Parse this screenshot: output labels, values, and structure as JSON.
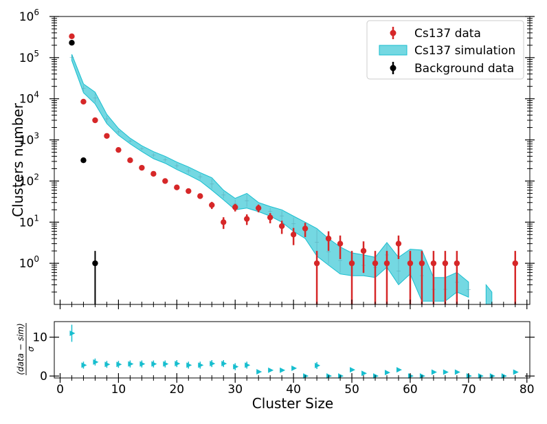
{
  "chart_data": [
    {
      "type": "scatter",
      "xlabel": "Cluster Size",
      "ylabel": "Clusters number",
      "yscale": "log",
      "xlim": [
        -1,
        80.5
      ],
      "ylim": [
        0.1,
        1000000
      ],
      "ytick_labels": [
        {
          "base": "10",
          "exp": "0"
        },
        {
          "base": "10",
          "exp": "1"
        },
        {
          "base": "10",
          "exp": "2"
        },
        {
          "base": "10",
          "exp": "3"
        },
        {
          "base": "10",
          "exp": "4"
        },
        {
          "base": "10",
          "exp": "5"
        },
        {
          "base": "10",
          "exp": "6"
        }
      ],
      "legend": {
        "placement": "top-right",
        "entries": [
          "Cs137 data",
          "Cs137 simulation",
          "Background data"
        ]
      },
      "series": [
        {
          "name": "Cs137 data",
          "color": "#d62728",
          "points": [
            {
              "x": 2,
              "y": 330000
            },
            {
              "x": 4,
              "y": 8500
            },
            {
              "x": 6,
              "y": 3000
            },
            {
              "x": 8,
              "y": 1250
            },
            {
              "x": 10,
              "y": 570
            },
            {
              "x": 12,
              "y": 320
            },
            {
              "x": 14,
              "y": 210
            },
            {
              "x": 16,
              "y": 150
            },
            {
              "x": 18,
              "y": 100
            },
            {
              "x": 20,
              "y": 70
            },
            {
              "x": 22,
              "y": 57
            },
            {
              "x": 24,
              "y": 43
            },
            {
              "x": 26,
              "y": 26
            },
            {
              "x": 28,
              "y": 10
            },
            {
              "x": 30,
              "y": 23
            },
            {
              "x": 32,
              "y": 12
            },
            {
              "x": 34,
              "y": 22
            },
            {
              "x": 36,
              "y": 13
            },
            {
              "x": 38,
              "y": 8
            },
            {
              "x": 40,
              "y": 5
            },
            {
              "x": 42,
              "y": 7
            },
            {
              "x": 44,
              "y": 1
            },
            {
              "x": 46,
              "y": 4
            },
            {
              "x": 48,
              "y": 3
            },
            {
              "x": 50,
              "y": 1
            },
            {
              "x": 52,
              "y": 2
            },
            {
              "x": 54,
              "y": 1
            },
            {
              "x": 56,
              "y": 1
            },
            {
              "x": 58,
              "y": 3
            },
            {
              "x": 60,
              "y": 1
            },
            {
              "x": 62,
              "y": 1
            },
            {
              "x": 64,
              "y": 1
            },
            {
              "x": 66,
              "y": 1
            },
            {
              "x": 68,
              "y": 1
            },
            {
              "x": 78,
              "y": 1
            }
          ]
        },
        {
          "name": "Cs137 simulation",
          "color": "#17becf",
          "band": [
            {
              "x": 2,
              "lo": 85000,
              "hi": 120000
            },
            {
              "x": 4,
              "lo": 14000,
              "hi": 23000
            },
            {
              "x": 6,
              "lo": 7500,
              "hi": 14500
            },
            {
              "x": 8,
              "lo": 2500,
              "hi": 4200
            },
            {
              "x": 10,
              "lo": 1300,
              "hi": 1900
            },
            {
              "x": 12,
              "lo": 800,
              "hi": 1100
            },
            {
              "x": 14,
              "lo": 520,
              "hi": 720
            },
            {
              "x": 16,
              "lo": 350,
              "hi": 520
            },
            {
              "x": 18,
              "lo": 270,
              "hi": 400
            },
            {
              "x": 20,
              "lo": 190,
              "hi": 290
            },
            {
              "x": 22,
              "lo": 140,
              "hi": 220
            },
            {
              "x": 24,
              "lo": 100,
              "hi": 160
            },
            {
              "x": 26,
              "lo": 60,
              "hi": 120
            },
            {
              "x": 28,
              "lo": 35,
              "hi": 60
            },
            {
              "x": 30,
              "lo": 20,
              "hi": 38
            },
            {
              "x": 32,
              "lo": 22,
              "hi": 50
            },
            {
              "x": 34,
              "lo": 18,
              "hi": 30
            },
            {
              "x": 36,
              "lo": 14,
              "hi": 24
            },
            {
              "x": 38,
              "lo": 10,
              "hi": 20
            },
            {
              "x": 40,
              "lo": 6,
              "hi": 14
            },
            {
              "x": 42,
              "lo": 4,
              "hi": 10
            },
            {
              "x": 44,
              "lo": 1.5,
              "hi": 7
            },
            {
              "x": 46,
              "lo": 0.9,
              "hi": 4
            },
            {
              "x": 48,
              "lo": 0.55,
              "hi": 2.5
            },
            {
              "x": 50,
              "lo": 0.5,
              "hi": 1.8
            },
            {
              "x": 52,
              "lo": 0.5,
              "hi": 1.6
            },
            {
              "x": 54,
              "lo": 0.45,
              "hi": 1.4
            },
            {
              "x": 56,
              "lo": 0.8,
              "hi": 3.2
            },
            {
              "x": 58,
              "lo": 0.3,
              "hi": 1.4
            },
            {
              "x": 60,
              "lo": 0.55,
              "hi": 2.2
            },
            {
              "x": 62,
              "lo": 0.12,
              "hi": 2.1
            },
            {
              "x": 64,
              "lo": 0.12,
              "hi": 0.45
            },
            {
              "x": 66,
              "lo": 0.12,
              "hi": 0.45
            },
            {
              "x": 68,
              "lo": 0.2,
              "hi": 0.6
            },
            {
              "x": 70,
              "lo": 0.15,
              "hi": 0.35
            }
          ],
          "band2": [
            {
              "x": 73,
              "lo": 0.1,
              "hi": 0.3
            },
            {
              "x": 74,
              "lo": 0.1,
              "hi": 0.2
            }
          ]
        },
        {
          "name": "Background data",
          "color": "#000000",
          "points": [
            {
              "x": 2,
              "y": 230000
            },
            {
              "x": 4,
              "y": 320
            },
            {
              "x": 6,
              "y": 1
            }
          ]
        }
      ],
      "xticks": [
        0,
        10,
        20,
        30,
        40,
        50,
        60,
        70,
        80
      ]
    },
    {
      "type": "scatter",
      "xlabel": "Cluster Size",
      "ylabel": "(data − sim)/σ",
      "ylabel_top": "(data − sim)",
      "ylabel_bottom": "σ",
      "xlim": [
        -1,
        80.5
      ],
      "ylim": [
        -0.5,
        14
      ],
      "yticks": [
        0,
        10
      ],
      "xticks": [
        0,
        10,
        20,
        30,
        40,
        50,
        60,
        70,
        80
      ],
      "xtick_labels": [
        "0",
        "10",
        "20",
        "30",
        "40",
        "50",
        "60",
        "70",
        "80"
      ],
      "series": [
        {
          "name": "",
          "color": "#17becf",
          "points": [
            {
              "x": 2,
              "y": 11
            },
            {
              "x": 4,
              "y": 2.8
            },
            {
              "x": 6,
              "y": 3.6
            },
            {
              "x": 8,
              "y": 3.0
            },
            {
              "x": 10,
              "y": 3.0
            },
            {
              "x": 12,
              "y": 3.1
            },
            {
              "x": 14,
              "y": 3.1
            },
            {
              "x": 16,
              "y": 3.1
            },
            {
              "x": 18,
              "y": 3.1
            },
            {
              "x": 20,
              "y": 3.2
            },
            {
              "x": 22,
              "y": 2.8
            },
            {
              "x": 24,
              "y": 2.8
            },
            {
              "x": 26,
              "y": 3.2
            },
            {
              "x": 28,
              "y": 3.2
            },
            {
              "x": 30,
              "y": 2.4
            },
            {
              "x": 32,
              "y": 2.8
            },
            {
              "x": 34,
              "y": 1.1
            },
            {
              "x": 36,
              "y": 1.5
            },
            {
              "x": 38,
              "y": 1.5
            },
            {
              "x": 40,
              "y": 2.0
            },
            {
              "x": 42,
              "y": 0.0
            },
            {
              "x": 44,
              "y": 2.7
            },
            {
              "x": 46,
              "y": 0.0
            },
            {
              "x": 48,
              "y": 0.0
            },
            {
              "x": 50,
              "y": 1.6
            },
            {
              "x": 52,
              "y": 0.7
            },
            {
              "x": 54,
              "y": 0.0
            },
            {
              "x": 56,
              "y": 0.9
            },
            {
              "x": 58,
              "y": 1.6
            },
            {
              "x": 60,
              "y": 0.0
            },
            {
              "x": 62,
              "y": 0.0
            },
            {
              "x": 64,
              "y": 1.0
            },
            {
              "x": 66,
              "y": 1.0
            },
            {
              "x": 68,
              "y": 1.0
            },
            {
              "x": 70,
              "y": 0.0
            },
            {
              "x": 72,
              "y": 0.0
            },
            {
              "x": 74,
              "y": 0.0
            },
            {
              "x": 76,
              "y": 0.0
            },
            {
              "x": 78,
              "y": 1.0
            }
          ]
        }
      ]
    }
  ]
}
